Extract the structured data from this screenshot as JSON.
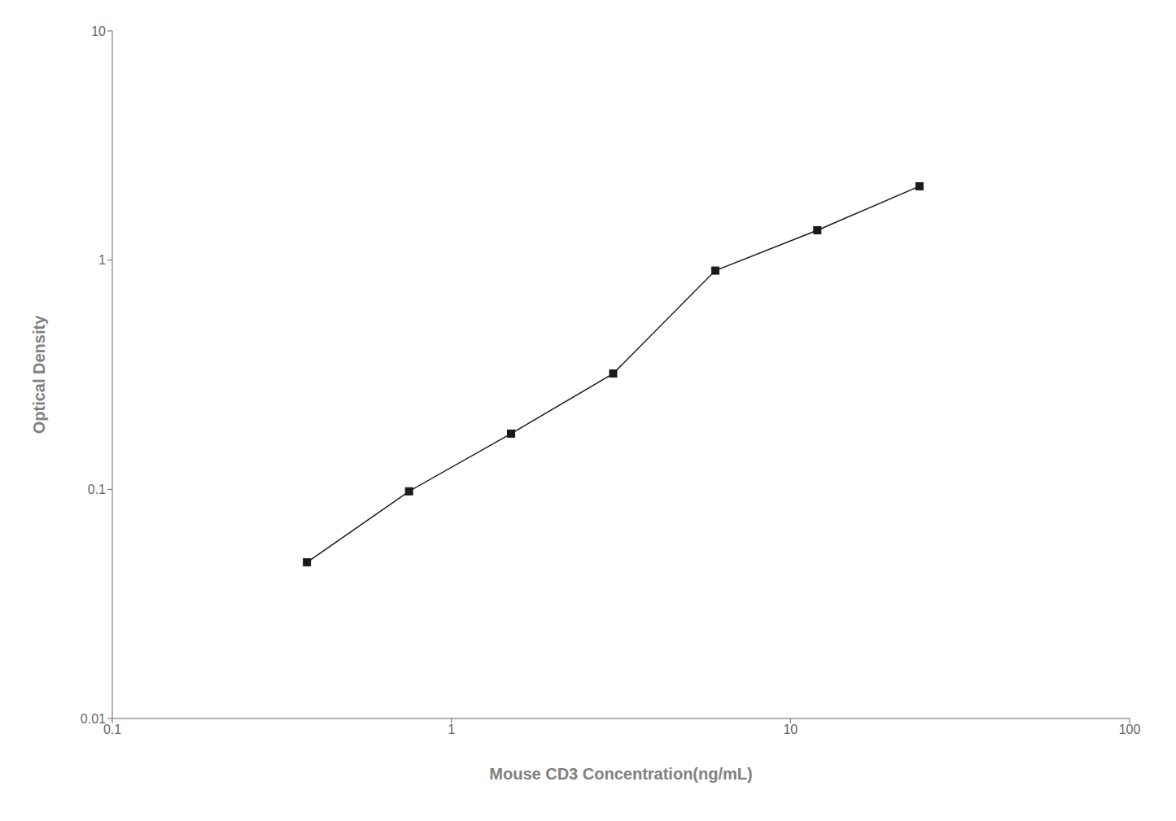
{
  "chart_data": {
    "type": "line",
    "x": [
      0.375,
      0.75,
      1.5,
      3.0,
      6.0,
      12.0,
      24.0
    ],
    "values": [
      0.048,
      0.098,
      0.175,
      0.32,
      0.9,
      1.35,
      2.1
    ],
    "xlabel": "Mouse CD3 Concentration(ng/mL)",
    "ylabel": "Optical Density",
    "xlim": [
      0.1,
      100
    ],
    "ylim": [
      0.01,
      10
    ],
    "xticks": [
      0.1,
      1,
      10,
      100
    ],
    "yticks": [
      0.01,
      0.1,
      1,
      10
    ],
    "log": true,
    "color": "#1a1a1a",
    "marker": "square",
    "grid": false
  }
}
